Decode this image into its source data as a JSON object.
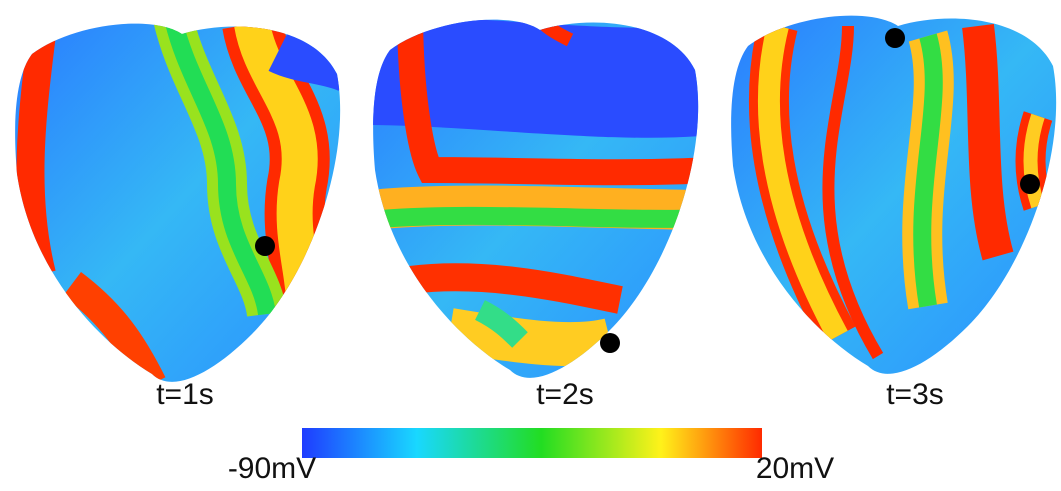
{
  "panels": [
    {
      "label": "t=1s"
    },
    {
      "label": "t=2s"
    },
    {
      "label": "t=3s"
    }
  ],
  "colorbar": {
    "min_label": "-90mV",
    "max_label": "20mV"
  }
}
